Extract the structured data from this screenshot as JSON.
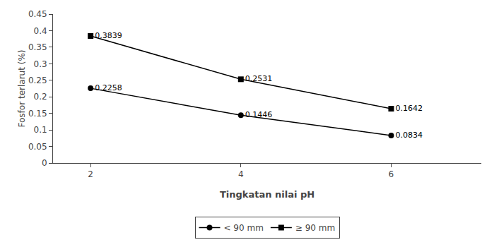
{
  "chart_data": {
    "type": "line",
    "x": [
      2,
      4,
      6
    ],
    "series": [
      {
        "name": "< 90 mm",
        "color": "#000000",
        "marker": "circle",
        "line_style": "solid",
        "values": [
          0.2258,
          0.1446,
          0.0834
        ]
      },
      {
        "name": "≥ 90 mm",
        "color": "#000000",
        "marker": "square",
        "line_style": "solid",
        "values": [
          0.3839,
          0.2531,
          0.1642
        ]
      }
    ],
    "x_label": "Tingkatan nilai pH",
    "y_label": "Fosfor terlarut (%)",
    "xlim": [
      1.5,
      7.2
    ],
    "xticks": [
      2,
      4,
      6
    ],
    "ylim": [
      0,
      0.45
    ],
    "yticks": [
      0,
      0.05,
      0.1,
      0.15,
      0.2,
      0.25,
      0.3,
      0.35,
      0.4,
      0.45
    ],
    "data_labels": true,
    "grid": false,
    "legend": "bottom"
  }
}
